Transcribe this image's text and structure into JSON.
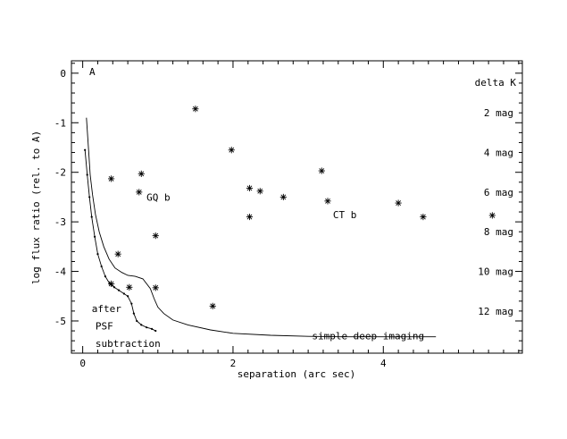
{
  "chart_data": {
    "type": "scatter",
    "title": "",
    "xlabel": "separation (arc sec)",
    "ylabel": "log flux ratio (rel. to A)",
    "xlim": [
      -0.15,
      5.85
    ],
    "ylim": [
      -5.65,
      0.25
    ],
    "x_ticks": [
      0,
      2,
      4
    ],
    "y_ticks": [
      0,
      -1,
      -2,
      -3,
      -4,
      -5
    ],
    "x_tick_labels": [
      "0",
      "2",
      "4"
    ],
    "y_tick_labels": [
      "0",
      "-1",
      "-2",
      "-3",
      "-4",
      "-5"
    ],
    "grid": false,
    "panel_label": "A",
    "right_axis_title": "delta K",
    "right_axis_labels": [
      {
        "text": "2 mag",
        "y": -0.8
      },
      {
        "text": "4 mag",
        "y": -1.6
      },
      {
        "text": "6 mag",
        "y": -2.4
      },
      {
        "text": "8 mag",
        "y": -3.2
      },
      {
        "text": "10 mag",
        "y": -4.0
      },
      {
        "text": "12 mag",
        "y": -4.8
      }
    ],
    "annotations": [
      {
        "text": "GQ b",
        "x": 0.85,
        "y": -2.5
      },
      {
        "text": "CT b",
        "x": 3.33,
        "y": -2.85
      },
      {
        "text": "simple deep imaging",
        "x": 3.05,
        "y": -5.3
      },
      {
        "text": "after",
        "x": 0.12,
        "y": -4.75
      },
      {
        "text": "PSF",
        "x": 0.17,
        "y": -5.1
      },
      {
        "text": "subtraction",
        "x": 0.17,
        "y": -5.45
      }
    ],
    "points": [
      {
        "x": 1.5,
        "y": -0.72
      },
      {
        "x": 0.38,
        "y": -2.13
      },
      {
        "x": 0.78,
        "y": -2.03
      },
      {
        "x": 0.75,
        "y": -2.4
      },
      {
        "x": 0.97,
        "y": -3.28
      },
      {
        "x": 0.47,
        "y": -3.65
      },
      {
        "x": 0.38,
        "y": -4.25
      },
      {
        "x": 0.62,
        "y": -4.32
      },
      {
        "x": 0.97,
        "y": -4.33
      },
      {
        "x": 1.73,
        "y": -4.7
      },
      {
        "x": 1.98,
        "y": -1.55
      },
      {
        "x": 2.22,
        "y": -2.32
      },
      {
        "x": 2.36,
        "y": -2.38
      },
      {
        "x": 2.22,
        "y": -2.9
      },
      {
        "x": 2.67,
        "y": -2.5
      },
      {
        "x": 3.18,
        "y": -1.97
      },
      {
        "x": 3.26,
        "y": -2.58
      },
      {
        "x": 4.2,
        "y": -2.62
      },
      {
        "x": 4.53,
        "y": -2.9
      },
      {
        "x": 5.45,
        "y": -2.87
      }
    ],
    "series": [
      {
        "x": [
          0.05,
          0.08,
          0.1,
          0.13,
          0.17,
          0.22,
          0.28,
          0.35,
          0.43,
          0.52,
          0.6,
          0.7,
          0.8,
          0.9,
          0.95,
          1.0,
          1.08,
          1.2,
          1.4,
          1.7,
          2.0,
          2.5,
          3.0,
          3.5,
          4.0,
          4.5,
          4.7
        ],
        "y": [
          -0.9,
          -1.6,
          -2.05,
          -2.45,
          -2.85,
          -3.2,
          -3.5,
          -3.75,
          -3.93,
          -4.02,
          -4.08,
          -4.1,
          -4.15,
          -4.35,
          -4.55,
          -4.72,
          -4.85,
          -4.98,
          -5.08,
          -5.18,
          -5.25,
          -5.29,
          -5.31,
          -5.32,
          -5.32,
          -5.32,
          -5.32
        ]
      },
      {
        "x": [
          0.03,
          0.06,
          0.09,
          0.12,
          0.16,
          0.2,
          0.25,
          0.3,
          0.36,
          0.42,
          0.48,
          0.55,
          0.6,
          0.65,
          0.68,
          0.72,
          0.78,
          0.85,
          0.92,
          0.97
        ],
        "y": [
          -1.55,
          -2.05,
          -2.5,
          -2.9,
          -3.3,
          -3.65,
          -3.9,
          -4.1,
          -4.25,
          -4.32,
          -4.38,
          -4.45,
          -4.5,
          -4.65,
          -4.85,
          -5.0,
          -5.08,
          -5.13,
          -5.16,
          -5.2
        ]
      }
    ]
  }
}
